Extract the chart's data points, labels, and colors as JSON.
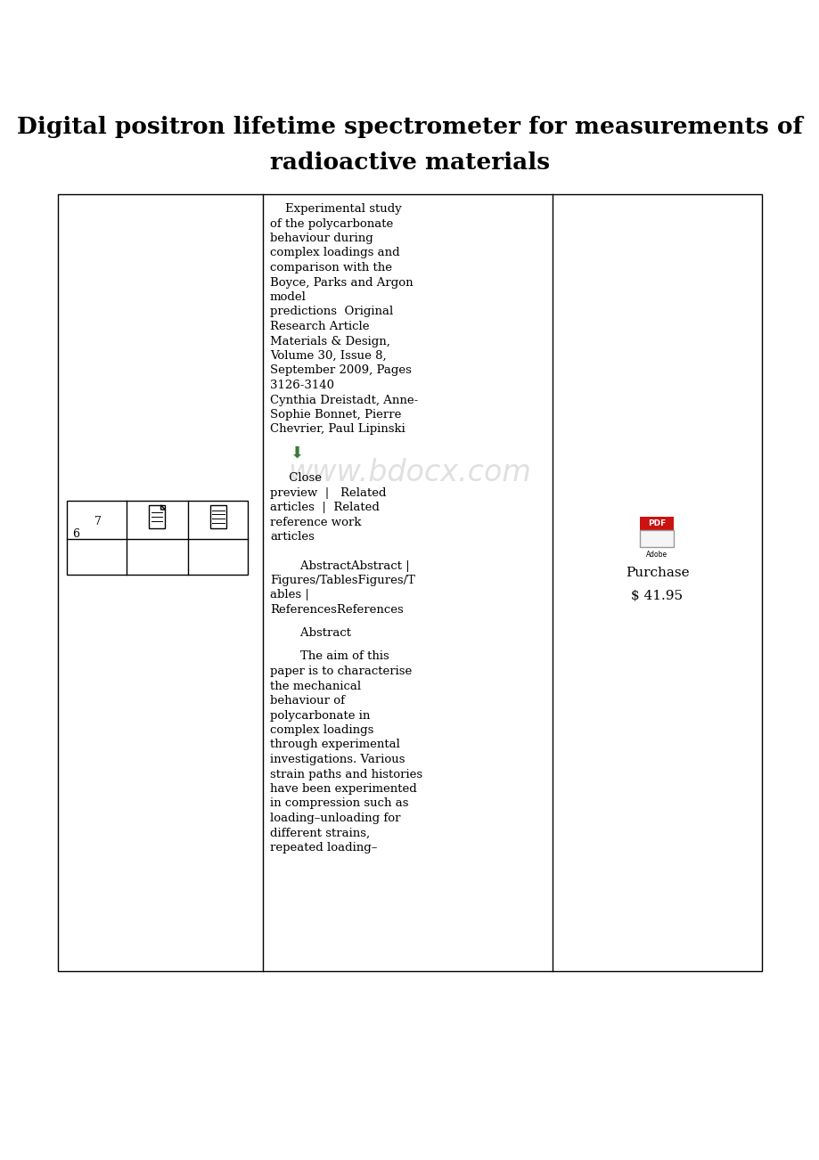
{
  "title_line1": "Digital positron lifetime spectrometer for measurements of",
  "title_line2": "radioactive materials",
  "title_fontsize": 19,
  "background_color": "#ffffff",
  "table_border_color": "#000000",
  "watermark_text": "www.bdocx.com",
  "watermark_color": "#c8c8c8",
  "download_arrow_color": "#3a7a3a",
  "pdf_icon_red": "#dd2222",
  "article_text_lines": [
    "    Experimental study",
    "of the polycarbonate",
    "behaviour during",
    "complex loadings and",
    "comparison with the",
    "Boyce, Parks and Argon",
    "model",
    "predictions  Original",
    "Research Article",
    "Materials & Design,",
    "Volume 30, Issue 8,",
    "September 2009, Pages",
    "3126-3140",
    "Cynthia Dreistadt, Anne-",
    "Sophie Bonnet, Pierre",
    "Chevrier, Paul Lipinski"
  ],
  "close_text_lines": [
    "     Close",
    "preview  |   Related",
    "articles  |  Related",
    "reference work",
    "articles"
  ],
  "abstract_nav_lines": [
    "        AbstractAbstract |",
    "Figures/TablesFigures/T",
    "ables |",
    "ReferencesReferences"
  ],
  "abstract_heading": "        Abstract",
  "abstract_body_lines": [
    "        The aim of this",
    "paper is to characterise",
    "the mechanical",
    "behaviour of",
    "polycarbonate in",
    "complex loadings",
    "through experimental",
    "investigations. Various",
    "strain paths and histories",
    "have been experimented",
    "in compression such as",
    "loading–unloading for",
    "different strains,",
    "repeated loading–"
  ],
  "purchase_text": "Purchase",
  "price_text": "$ 41.95",
  "label_7": "7",
  "label_6": "6"
}
